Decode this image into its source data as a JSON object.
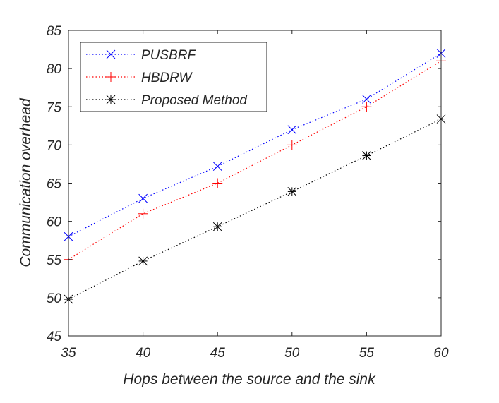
{
  "chart_data": {
    "type": "line",
    "title": "",
    "xlabel": "Hops between the source and the sink",
    "ylabel": "Communication overhead",
    "xlim": [
      35,
      60
    ],
    "ylim": [
      45,
      85
    ],
    "xticks": [
      35,
      40,
      45,
      50,
      55,
      60
    ],
    "yticks": [
      45,
      50,
      55,
      60,
      65,
      70,
      75,
      80,
      85
    ],
    "grid": false,
    "legend_position": "top-left",
    "x": [
      35,
      40,
      45,
      50,
      55,
      60
    ],
    "series": [
      {
        "name": "PUSBRF",
        "color": "#0000ff",
        "marker": "x",
        "values": [
          58,
          63,
          67.2,
          72,
          76,
          82
        ]
      },
      {
        "name": "HBDRW",
        "color": "#ff0000",
        "marker": "+",
        "values": [
          55,
          61,
          65,
          70,
          75,
          81
        ]
      },
      {
        "name": "Proposed Method",
        "color": "#000000",
        "marker": "*",
        "values": [
          49.8,
          54.8,
          59.3,
          63.9,
          68.6,
          73.4
        ]
      }
    ]
  }
}
